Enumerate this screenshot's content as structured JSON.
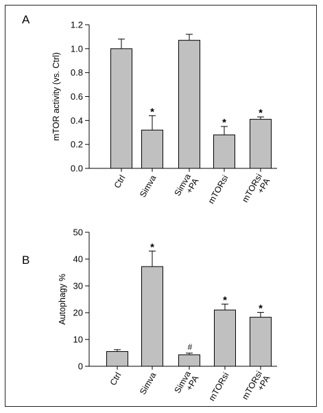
{
  "chart_data": [
    {
      "type": "bar",
      "panel_label": "A",
      "ylabel": "mTOR activity (vs. Ctrl)",
      "categories": [
        "Ctrl",
        "Simva",
        "Simva\n+PA",
        "mTORsi",
        "mTORsi\n+PA"
      ],
      "values": [
        1.0,
        0.32,
        1.07,
        0.28,
        0.41
      ],
      "errors": [
        0.08,
        0.12,
        0.05,
        0.07,
        0.02
      ],
      "annotations": [
        "",
        "*",
        "",
        "*",
        "*"
      ],
      "ylim": [
        0.0,
        1.2
      ],
      "yticks": [
        0.0,
        0.2,
        0.4,
        0.6,
        0.8,
        1.0,
        1.2
      ],
      "ytick_labels": [
        "0.0",
        "0.2",
        "0.4",
        "0.6",
        "0.8",
        "1.0",
        "1.2"
      ],
      "bar_color": "#c0c0c0",
      "grid": false
    },
    {
      "type": "bar",
      "panel_label": "B",
      "ylabel": "Autophagy %",
      "categories": [
        "Ctrl",
        "Simva",
        "Simva\n+PA",
        "mTORsi",
        "mTORsi\n+PA"
      ],
      "values": [
        5.5,
        37.2,
        4.3,
        21.0,
        18.3
      ],
      "errors": [
        0.7,
        5.8,
        0.6,
        2.2,
        1.8
      ],
      "annotations": [
        "",
        "*",
        "#",
        "*",
        "*"
      ],
      "ylim": [
        0,
        50
      ],
      "yticks": [
        0,
        10,
        20,
        30,
        40,
        50
      ],
      "ytick_labels": [
        "0",
        "10",
        "20",
        "30",
        "40",
        "50"
      ],
      "bar_color": "#c0c0c0",
      "grid": false
    }
  ]
}
